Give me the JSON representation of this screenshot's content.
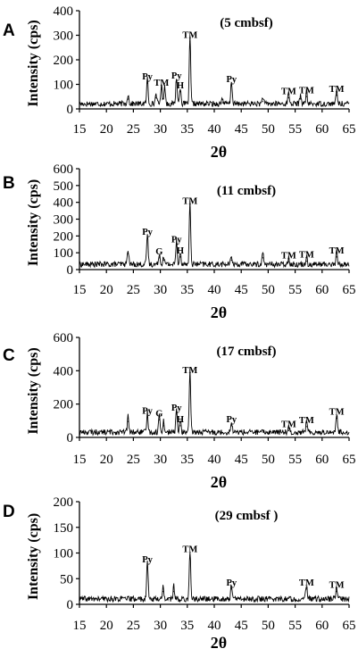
{
  "figure": {
    "panels": [
      {
        "letter": "A",
        "title": "(5 cmbsf)",
        "ylabel": "Intensity (cps)",
        "xlabel": "2θ"
      },
      {
        "letter": "B",
        "title": "(11 cmbsf)",
        "ylabel": "Intensity (cps)",
        "xlabel": "2θ"
      },
      {
        "letter": "C",
        "title": "(17 cmbsf)",
        "ylabel": "Intensity (cps)",
        "xlabel": "2θ"
      },
      {
        "letter": "D",
        "title": "(29 cmbsf )",
        "ylabel": "Intensity (cps)",
        "xlabel": "2θ"
      }
    ]
  },
  "chart_data": [
    {
      "type": "line",
      "title": "(5 cmbsf)",
      "xlabel": "2θ",
      "ylabel": "Intensity (cps)",
      "xlim": [
        15,
        65
      ],
      "ylim": [
        0,
        400
      ],
      "xticks": [
        15,
        20,
        25,
        30,
        35,
        40,
        45,
        50,
        55,
        60,
        65
      ],
      "yticks": [
        0,
        100,
        200,
        300,
        400
      ],
      "grid": false,
      "peaks": [
        {
          "x": 24.0,
          "y": 40
        },
        {
          "x": 27.6,
          "y": 105,
          "label": "Py"
        },
        {
          "x": 29.2,
          "y": 45
        },
        {
          "x": 30.2,
          "y": 80,
          "label": "TM"
        },
        {
          "x": 30.8,
          "y": 80
        },
        {
          "x": 33.0,
          "y": 110,
          "label": "Py"
        },
        {
          "x": 33.7,
          "y": 70,
          "label": "H"
        },
        {
          "x": 35.5,
          "y": 275,
          "label": "TM"
        },
        {
          "x": 41.5,
          "y": 25
        },
        {
          "x": 43.2,
          "y": 95,
          "label": "Py"
        },
        {
          "x": 49.0,
          "y": 30
        },
        {
          "x": 53.8,
          "y": 45,
          "label": "TM"
        },
        {
          "x": 56.0,
          "y": 40
        },
        {
          "x": 57.1,
          "y": 50,
          "label": "TM"
        },
        {
          "x": 62.7,
          "y": 55,
          "label": "TM"
        }
      ]
    },
    {
      "type": "line",
      "title": "(11 cmbsf)",
      "xlabel": "2θ",
      "ylabel": "Intensity (cps)",
      "xlim": [
        15,
        65
      ],
      "ylim": [
        0,
        600
      ],
      "xticks": [
        15,
        20,
        25,
        30,
        35,
        40,
        45,
        50,
        55,
        60,
        65
      ],
      "yticks": [
        0,
        100,
        200,
        300,
        400,
        500,
        600
      ],
      "grid": false,
      "peaks": [
        {
          "x": 24.0,
          "y": 95
        },
        {
          "x": 27.6,
          "y": 185,
          "label": "Py"
        },
        {
          "x": 29.8,
          "y": 70,
          "label": "G"
        },
        {
          "x": 30.6,
          "y": 55
        },
        {
          "x": 33.0,
          "y": 140,
          "label": "Py"
        },
        {
          "x": 33.7,
          "y": 75,
          "label": "H"
        },
        {
          "x": 35.5,
          "y": 370,
          "label": "TM"
        },
        {
          "x": 43.2,
          "y": 55
        },
        {
          "x": 49.0,
          "y": 70
        },
        {
          "x": 53.8,
          "y": 45,
          "label": "TM"
        },
        {
          "x": 57.1,
          "y": 50,
          "label": "TM"
        },
        {
          "x": 62.7,
          "y": 75,
          "label": "TM"
        }
      ]
    },
    {
      "type": "line",
      "title": "(17 cmbsf)",
      "xlabel": "2θ",
      "ylabel": "Intensity (cps)",
      "xlim": [
        15,
        65
      ],
      "ylim": [
        0,
        600
      ],
      "xticks": [
        15,
        20,
        25,
        30,
        35,
        40,
        45,
        50,
        55,
        60,
        65
      ],
      "yticks": [
        0,
        200,
        400,
        600
      ],
      "grid": false,
      "peaks": [
        {
          "x": 24.0,
          "y": 95
        },
        {
          "x": 27.6,
          "y": 120,
          "label": "Py"
        },
        {
          "x": 29.8,
          "y": 105,
          "label": "G"
        },
        {
          "x": 30.6,
          "y": 70
        },
        {
          "x": 33.0,
          "y": 140,
          "label": "Py"
        },
        {
          "x": 33.7,
          "y": 70,
          "label": "H"
        },
        {
          "x": 35.5,
          "y": 365,
          "label": "TM"
        },
        {
          "x": 43.2,
          "y": 70,
          "label": "Py"
        },
        {
          "x": 53.8,
          "y": 40,
          "label": "TM"
        },
        {
          "x": 57.1,
          "y": 65,
          "label": "TM"
        },
        {
          "x": 62.7,
          "y": 115,
          "label": "TM"
        }
      ]
    },
    {
      "type": "line",
      "title": "(29 cmbsf )",
      "xlabel": "2θ",
      "ylabel": "Intensity (cps)",
      "xlim": [
        15,
        65
      ],
      "ylim": [
        0,
        200
      ],
      "xticks": [
        15,
        20,
        25,
        30,
        35,
        40,
        45,
        50,
        55,
        60,
        65
      ],
      "yticks": [
        0,
        50,
        100,
        150,
        200
      ],
      "grid": false,
      "peaks": [
        {
          "x": 27.6,
          "y": 75,
          "label": "Py"
        },
        {
          "x": 30.5,
          "y": 25
        },
        {
          "x": 32.5,
          "y": 25
        },
        {
          "x": 35.5,
          "y": 95,
          "label": "TM"
        },
        {
          "x": 43.2,
          "y": 30,
          "label": "Py"
        },
        {
          "x": 57.1,
          "y": 30,
          "label": "TM"
        },
        {
          "x": 62.7,
          "y": 25,
          "label": "TM"
        }
      ]
    }
  ]
}
